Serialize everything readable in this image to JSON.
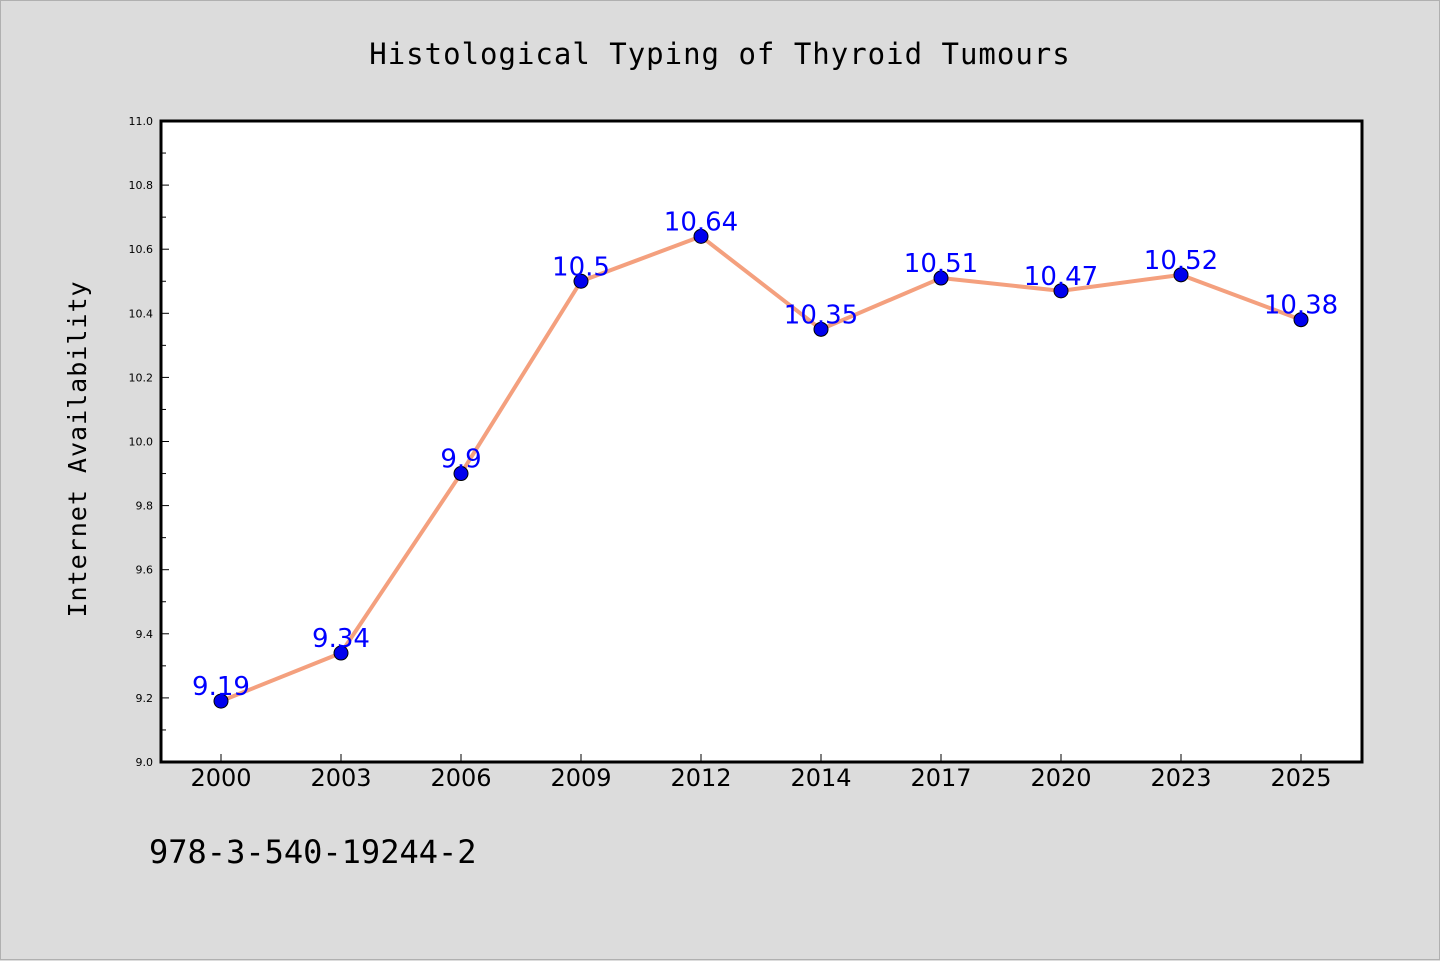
{
  "chart_data": {
    "type": "line",
    "title": "Histological Typing of Thyroid Tumours",
    "xlabel": "",
    "ylabel": "Internet Availability",
    "categories": [
      "2000",
      "2003",
      "2006",
      "2009",
      "2012",
      "2014",
      "2017",
      "2020",
      "2023",
      "2025"
    ],
    "values": [
      9.19,
      9.34,
      9.9,
      10.5,
      10.64,
      10.35,
      10.51,
      10.47,
      10.52,
      10.38
    ],
    "data_labels": [
      "9.19",
      "9.34",
      "9.9",
      "10.5",
      "10.64",
      "10.35",
      "10.51",
      "10.47",
      "10.52",
      "10.38"
    ],
    "ylim": [
      9.0,
      11.0
    ],
    "yticks": [
      "9.0",
      "9.2",
      "9.4",
      "9.6",
      "9.8",
      "10.0",
      "10.2",
      "10.4",
      "10.6",
      "10.8",
      "11.0"
    ],
    "grid": false,
    "line_color": "#f4a07e",
    "marker_color": "#0000ee",
    "label_color": "#0000ff"
  },
  "footer": {
    "code": "978-3-540-19244-2"
  }
}
